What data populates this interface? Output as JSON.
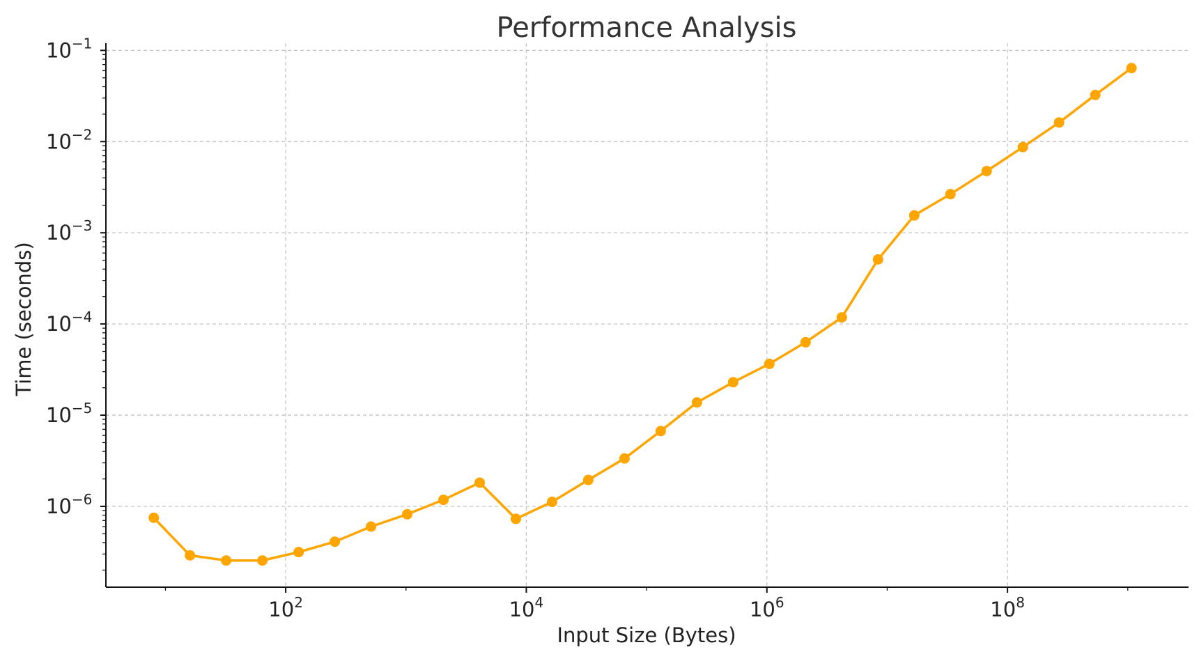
{
  "chart_data": {
    "type": "line",
    "title": "Performance Analysis",
    "xlabel": "Input Size (Bytes)",
    "ylabel": "Time (seconds)",
    "xscale": "log",
    "yscale": "log",
    "xlim": [
      3.2,
      3200000000
    ],
    "ylim": [
      1.3e-07,
      0.12
    ],
    "x_ticks": [
      {
        "base": "10",
        "exp": "2",
        "value": 100
      },
      {
        "base": "10",
        "exp": "4",
        "value": 10000
      },
      {
        "base": "10",
        "exp": "6",
        "value": 1000000
      },
      {
        "base": "10",
        "exp": "8",
        "value": 100000000
      }
    ],
    "y_ticks": [
      {
        "base": "10",
        "exp": "−6",
        "value": 1e-06
      },
      {
        "base": "10",
        "exp": "−5",
        "value": 1e-05
      },
      {
        "base": "10",
        "exp": "−4",
        "value": 0.0001
      },
      {
        "base": "10",
        "exp": "−3",
        "value": 0.001
      },
      {
        "base": "10",
        "exp": "−2",
        "value": 0.01
      },
      {
        "base": "10",
        "exp": "−1",
        "value": 0.1
      }
    ],
    "grid": true,
    "color": "#FFA500",
    "series": [
      {
        "x": [
          8,
          16,
          32,
          64,
          128,
          256,
          512,
          1024,
          2048,
          4096,
          8192,
          16384,
          32768,
          65536,
          131072,
          262144,
          524288,
          1048576,
          2097152,
          4194304,
          8388608,
          16777216,
          33554432,
          67108864,
          134217728,
          268435456,
          536870912,
          1073741824
        ],
        "y": [
          7.5e-07,
          2.9e-07,
          2.55e-07,
          2.55e-07,
          3.15e-07,
          4.1e-07,
          6e-07,
          8.2e-07,
          1.18e-06,
          1.82e-06,
          7.3e-07,
          1.12e-06,
          1.95e-06,
          3.35e-06,
          6.7e-06,
          1.38e-05,
          2.3e-05,
          3.65e-05,
          6.3e-05,
          0.000118,
          0.00051,
          0.00155,
          0.00265,
          0.00475,
          0.0087,
          0.0162,
          0.0325,
          0.064
        ]
      }
    ]
  }
}
